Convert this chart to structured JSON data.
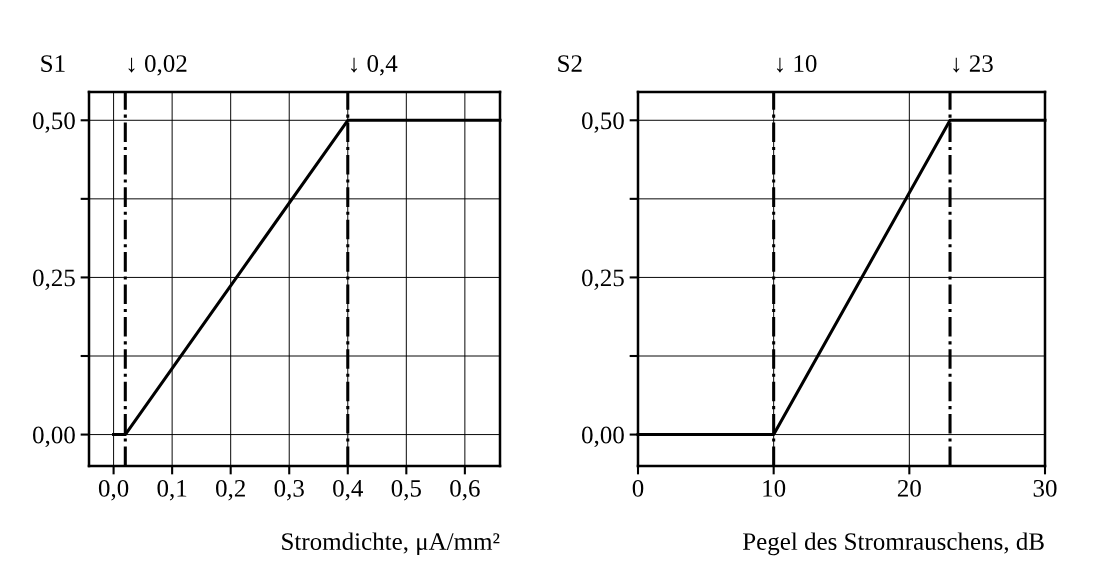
{
  "chart_data": [
    {
      "type": "line",
      "title": "S1",
      "xlabel": "Stromdichte, μA/mm²",
      "x": [
        0,
        0.02,
        0.4,
        0.66
      ],
      "series": [
        {
          "color": "#000000",
          "values": [
            0,
            0,
            0.5,
            0.5
          ]
        }
      ],
      "xlim": [
        -0.042,
        0.66
      ],
      "xticks": [
        {
          "value": 0,
          "label": "0,0"
        },
        {
          "value": 0.1,
          "label": "0,1"
        },
        {
          "value": 0.2,
          "label": "0,2"
        },
        {
          "value": 0.3,
          "label": "0,3"
        },
        {
          "value": 0.4,
          "label": "0,4"
        },
        {
          "value": 0.5,
          "label": "0,5"
        },
        {
          "value": 0.6,
          "label": "0,6"
        }
      ],
      "ylim": [
        -0.05,
        0.545
      ],
      "yticks": [
        {
          "value": 0,
          "label": "0,00"
        },
        {
          "value": 0.125,
          "label": null
        },
        {
          "value": 0.25,
          "label": "0,25"
        },
        {
          "value": 0.375,
          "label": null
        },
        {
          "value": 0.5,
          "label": "0,50"
        }
      ],
      "ref_lines": [
        {
          "axis": "x",
          "value": 0.02,
          "label": "↓ 0,02",
          "color": "#000000",
          "line_style": "dashdot"
        },
        {
          "axis": "x",
          "value": 0.4,
          "label": "↓ 0,4",
          "color": "#000000",
          "line_style": "dashdot"
        }
      ],
      "grid": true,
      "line_style": "solid"
    },
    {
      "type": "line",
      "title": "S2",
      "xlabel": "Pegel des Stromrauschens, dB",
      "x": [
        0,
        10,
        23,
        30
      ],
      "series": [
        {
          "color": "#000000",
          "values": [
            0,
            0,
            0.5,
            0.5
          ]
        }
      ],
      "xlim": [
        0,
        30
      ],
      "xticks": [
        0,
        10,
        20,
        30
      ],
      "ylim": [
        -0.05,
        0.545
      ],
      "yticks": [
        {
          "value": 0,
          "label": "0,00"
        },
        {
          "value": 0.125,
          "label": null
        },
        {
          "value": 0.25,
          "label": "0,25"
        },
        {
          "value": 0.375,
          "label": null
        },
        {
          "value": 0.5,
          "label": "0,50"
        }
      ],
      "ref_lines": [
        {
          "axis": "x",
          "value": 10,
          "label": "↓ 10",
          "color": "#000000",
          "line_style": "dashdot"
        },
        {
          "axis": "x",
          "value": 23,
          "label": "↓ 23",
          "color": "#000000",
          "line_style": "dashdot"
        }
      ],
      "grid": true,
      "line_style": "solid"
    }
  ]
}
